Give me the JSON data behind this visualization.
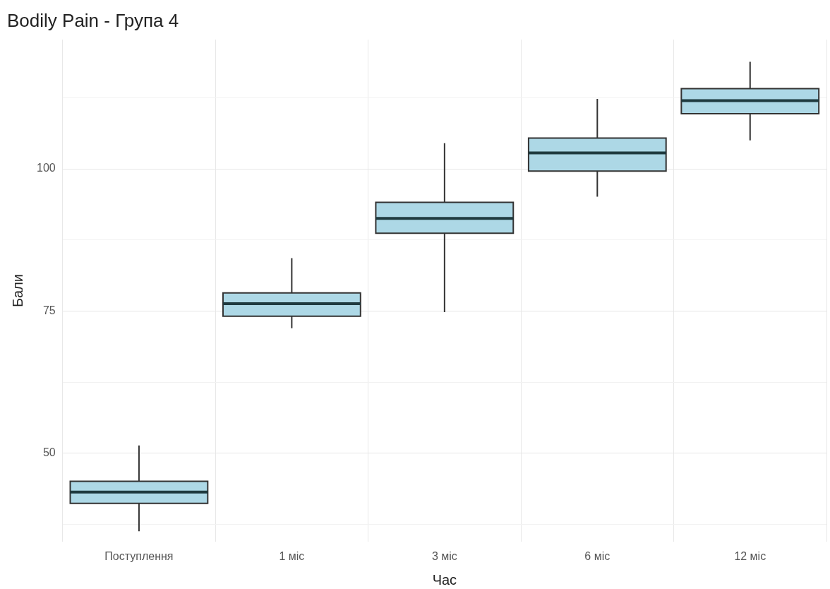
{
  "chart_data": {
    "type": "box",
    "title": "Bodily Pain - Група 4",
    "xlabel": "Час",
    "ylabel": "Бали",
    "categories": [
      "Поступлення",
      "1 міс",
      "3 міс",
      "6 міс",
      "12 міс"
    ],
    "color": "#add8e6",
    "boxes": [
      {
        "low": 36.3,
        "q1": 41.2,
        "median": 43.2,
        "q3": 45.1,
        "high": 51.4
      },
      {
        "low": 72.0,
        "q1": 74.1,
        "median": 76.3,
        "q3": 78.2,
        "high": 84.3
      },
      {
        "low": 74.8,
        "q1": 88.7,
        "median": 91.3,
        "q3": 94.1,
        "high": 104.5
      },
      {
        "low": 95.1,
        "q1": 99.6,
        "median": 102.8,
        "q3": 105.4,
        "high": 112.3
      },
      {
        "low": 105.0,
        "q1": 109.7,
        "median": 112.0,
        "q3": 114.1,
        "high": 118.8
      }
    ],
    "ylim": [
      34.5,
      122.7
    ],
    "yticks": [
      {
        "value": 37.5,
        "label": null
      },
      50,
      {
        "value": 62.5,
        "label": null
      },
      75,
      {
        "value": 87.5,
        "label": null
      },
      100,
      {
        "value": 112.5,
        "label": null
      }
    ],
    "grid": true,
    "legend": false
  }
}
